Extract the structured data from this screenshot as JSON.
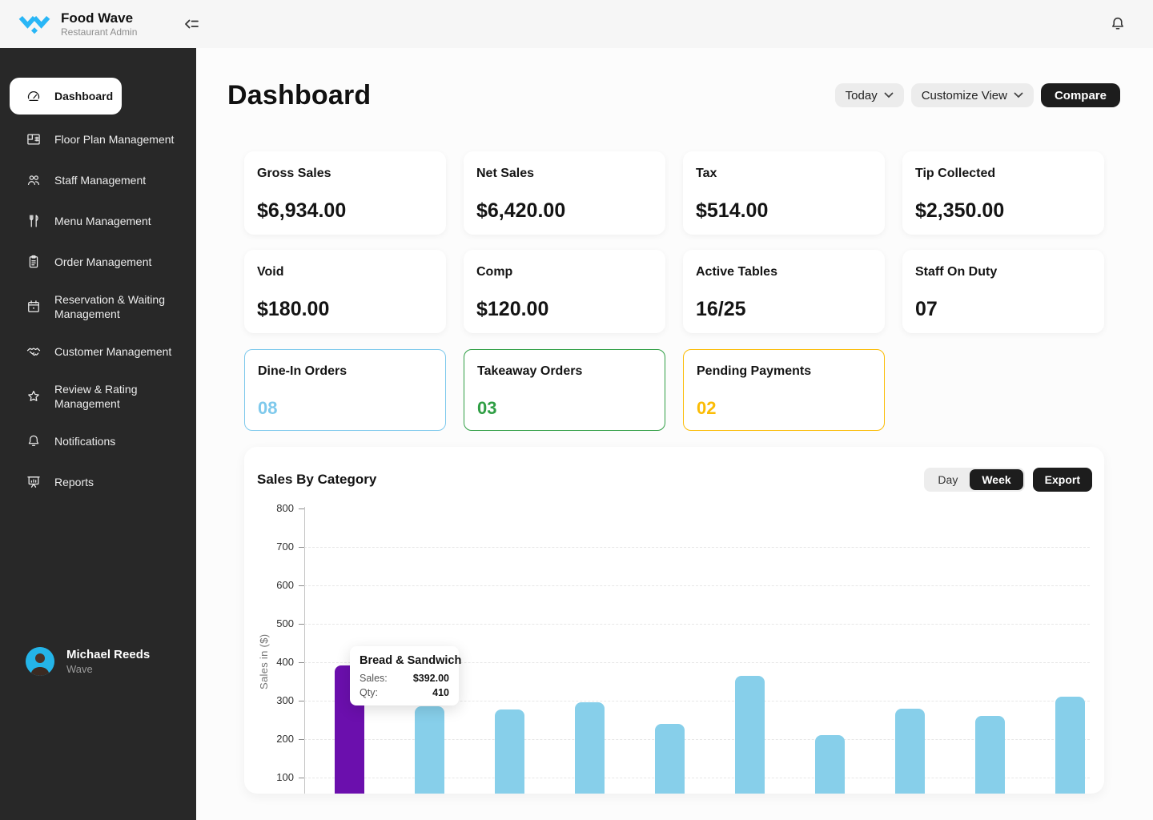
{
  "topbar": {
    "brand": "Food Wave",
    "brand_sub": "Restaurant Admin",
    "brand_color": "#29b6f6",
    "icons": [
      "logo-wave-icon",
      "collapse-sidebar-icon",
      "bell-icon"
    ]
  },
  "sidebar": {
    "items": [
      {
        "label": "Dashboard",
        "icon": "dashboard-gauge-icon",
        "active": true
      },
      {
        "label": "Floor Plan Management",
        "icon": "floor-plan-icon",
        "active": false
      },
      {
        "label": "Staff Management",
        "icon": "staff-people-icon",
        "active": false
      },
      {
        "label": "Menu Management",
        "icon": "fork-knife-icon",
        "active": false
      },
      {
        "label": "Order Management",
        "icon": "clipboard-icon",
        "active": false
      },
      {
        "label": "Reservation & Waiting Management",
        "icon": "calendar-icon",
        "active": false
      },
      {
        "label": "Customer Management",
        "icon": "handshake-icon",
        "active": false
      },
      {
        "label": "Review & Rating Management",
        "icon": "star-icon",
        "active": false
      },
      {
        "label": "Notifications",
        "icon": "bell-icon",
        "active": false
      },
      {
        "label": "Reports",
        "icon": "presentation-chart-icon",
        "active": false
      }
    ],
    "profile": {
      "name": "Michael Reeds",
      "org": "Wave"
    }
  },
  "header": {
    "title": "Dashboard",
    "date_filter_label": "Today",
    "customize_label": "Customize View",
    "compare_label": "Compare"
  },
  "stats": [
    {
      "label": "Gross Sales",
      "value": "$6,934.00"
    },
    {
      "label": "Net Sales",
      "value": "$6,420.00"
    },
    {
      "label": "Tax",
      "value": "$514.00"
    },
    {
      "label": "Tip Collected",
      "value": "$2,350.00"
    },
    {
      "label": "Void",
      "value": "$180.00"
    },
    {
      "label": "Comp",
      "value": "$120.00"
    },
    {
      "label": "Active Tables",
      "value": "16/25"
    },
    {
      "label": "Staff On Duty",
      "value": "07"
    }
  ],
  "order_cards": [
    {
      "label": "Dine-In Orders",
      "value": "08",
      "accent": "#7ec9ec"
    },
    {
      "label": "Takeaway Orders",
      "value": "03",
      "accent": "#2f9e44"
    },
    {
      "label": "Pending Payments",
      "value": "02",
      "accent": "#fbbc05"
    }
  ],
  "chart": {
    "title": "Sales By Category",
    "toggle_day": "Day",
    "toggle_week": "Week",
    "active_toggle": "Week",
    "export_label": "Export"
  },
  "chart_data": {
    "type": "bar",
    "title": "Sales By Category",
    "ylabel": "Sales in ($)",
    "ylim": [
      0,
      800
    ],
    "yticks": [
      100,
      200,
      300,
      400,
      500,
      600,
      700,
      800
    ],
    "grid": "dashed-horizontal",
    "x_axis_labels_visible": false,
    "categories": [
      "Bread & Sandwich",
      "",
      "",
      "",
      "",
      "",
      "",
      "",
      "",
      ""
    ],
    "values": [
      392,
      285,
      278,
      295,
      240,
      365,
      210,
      280,
      260,
      310
    ],
    "highlight_index": 0,
    "bar_color": "#87cfea",
    "highlight_color": "#6b0fad",
    "tooltip": {
      "title": "Bread & Sandwich",
      "rows": [
        {
          "label": "Sales:",
          "value": "$392.00"
        },
        {
          "label": "Qty:",
          "value": "410"
        }
      ]
    }
  }
}
